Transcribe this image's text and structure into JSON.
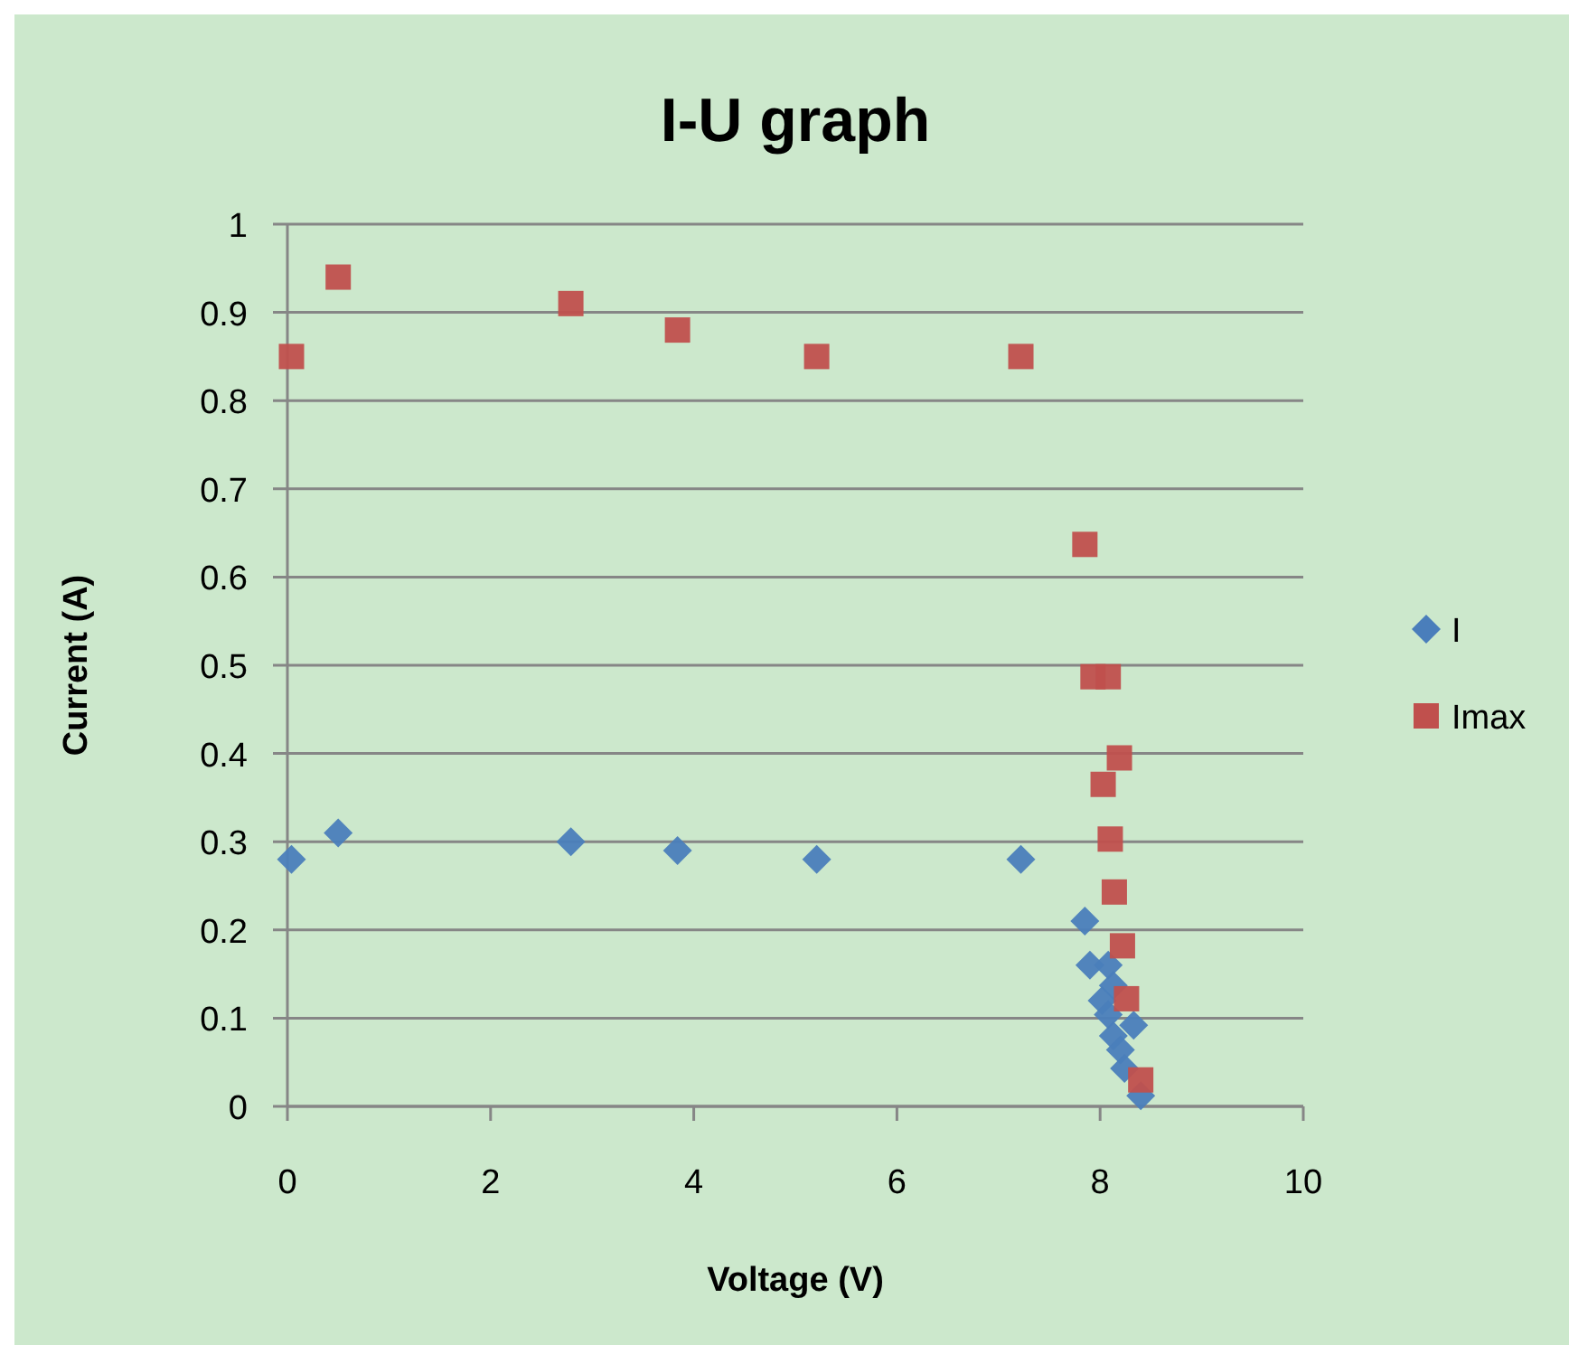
{
  "chart_data": {
    "type": "scatter",
    "title": "I-U graph",
    "xlabel": "Voltage (V)",
    "ylabel": "Current (A)",
    "xlim": [
      0,
      10
    ],
    "xticks": [
      0,
      2,
      4,
      6,
      8,
      10
    ],
    "ylim": [
      0,
      1
    ],
    "yticks": [
      0,
      0.1,
      0.2,
      0.3,
      0.4,
      0.5,
      0.6,
      0.7,
      0.8,
      0.9,
      1
    ],
    "grid": "y",
    "legend": "right",
    "series": [
      {
        "name": "I",
        "color": "#4a7ebb",
        "marker": "diamond",
        "x": [
          0.04,
          0.5,
          2.79,
          3.84,
          5.21,
          7.22,
          7.85,
          7.9,
          8.08,
          8.02,
          8.13,
          8.08,
          8.33,
          8.13,
          8.2,
          8.24,
          8.4
        ],
        "values": [
          0.28,
          0.31,
          0.3,
          0.29,
          0.28,
          0.28,
          0.21,
          0.16,
          0.16,
          0.12,
          0.137,
          0.104,
          0.092,
          0.08,
          0.064,
          0.043,
          0.012
        ]
      },
      {
        "name": "Imax",
        "color": "#c0504d",
        "marker": "square",
        "x": [
          0.04,
          0.5,
          2.79,
          3.84,
          5.21,
          7.22,
          7.85,
          7.93,
          8.08,
          8.19,
          8.03,
          8.1,
          8.14,
          8.22,
          8.26,
          8.4
        ],
        "values": [
          0.85,
          0.94,
          0.91,
          0.88,
          0.85,
          0.85,
          0.637,
          0.487,
          0.487,
          0.395,
          0.365,
          0.303,
          0.243,
          0.182,
          0.122,
          0.03
        ]
      }
    ]
  }
}
